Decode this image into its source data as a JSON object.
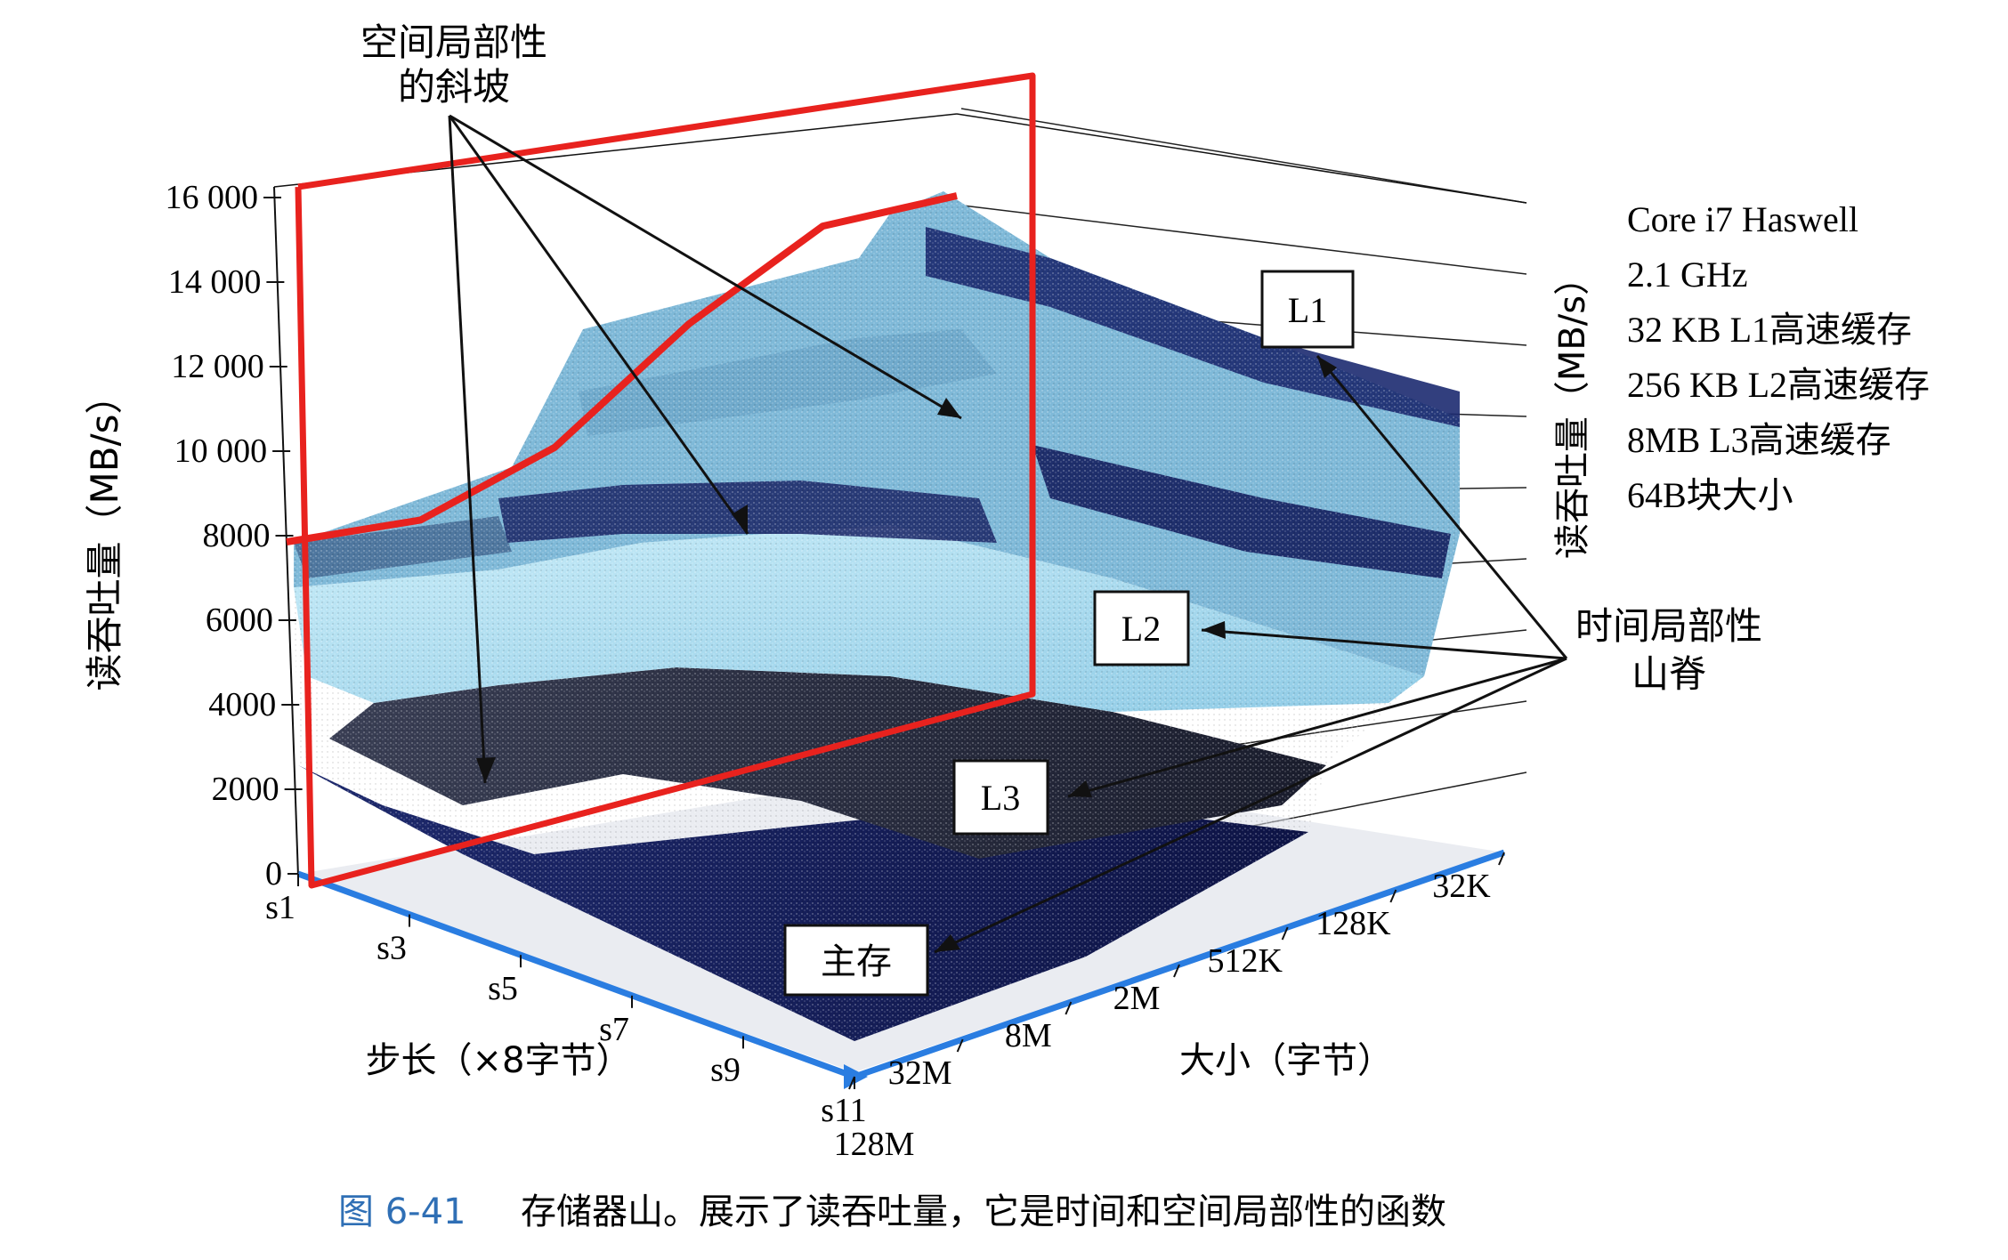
{
  "chart_data": {
    "type": "surface",
    "title": "",
    "zlabel": "读吞吐量（MB/s）",
    "zlabel_right": "读吞吐量（MB/s）",
    "xlabel": "步长（×8字节）",
    "ylabel": "大小（字节）",
    "z_ticks": [
      "0",
      "2000",
      "4000",
      "6000",
      "8000",
      "10 000",
      "12 000",
      "14 000",
      "16 000"
    ],
    "z_values": [
      0,
      2000,
      4000,
      6000,
      8000,
      10000,
      12000,
      14000,
      16000
    ],
    "zlim": [
      0,
      16000
    ],
    "x_ticks": [
      "s1",
      "s3",
      "s5",
      "s7",
      "s9",
      "s11"
    ],
    "y_ticks": [
      "32K",
      "128K",
      "512K",
      "2M",
      "8M",
      "32M",
      "128M"
    ],
    "specs": [
      "Core i7 Haswell",
      "2.1 GHz",
      "32 KB L1高速缓存",
      "256 KB L2高速缓存",
      "8MB L3高速缓存",
      "64B块大小"
    ],
    "ridges": [
      {
        "label": "L1",
        "approx_throughput": 12000
      },
      {
        "label": "L2",
        "approx_throughput": 6000
      },
      {
        "label": "L3",
        "approx_throughput": 3500
      },
      {
        "label": "主存",
        "approx_throughput": 1000
      }
    ],
    "annotations": {
      "spatial_line1": "空间局部性",
      "spatial_line2": "的斜坡",
      "temporal_line1": "时间局部性",
      "temporal_line2": "山脊"
    },
    "slope_curve": {
      "strides": [
        "s1",
        "s3",
        "s5",
        "s7",
        "s9",
        "s11"
      ],
      "values": [
        15200,
        14600,
        12400,
        9600,
        8000,
        7600
      ]
    }
  },
  "caption": {
    "number": "图 6-41",
    "text": "存储器山。展示了读吞吐量，它是时间和空间局部性的函数"
  },
  "colors": {
    "frame": "#e8221e",
    "axis": "#2a7de1",
    "surface_light": "#a9dcef",
    "surface_dark": "#141a55",
    "caption_number": "#2f6fb5"
  }
}
